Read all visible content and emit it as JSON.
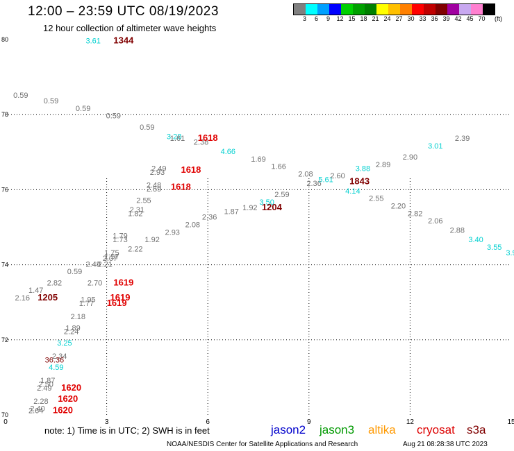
{
  "header": {
    "title": "12:00 – 23:59 UTC 08/19/2023",
    "subtitle": "12 hour collection of altimeter wave heights"
  },
  "scale": {
    "colors": [
      "#808080",
      "#00ffff",
      "#00a0ff",
      "#0000ff",
      "#00d000",
      "#00a000",
      "#008000",
      "#ffff00",
      "#ffc000",
      "#ff8000",
      "#ff0000",
      "#c00000",
      "#800000",
      "#a000a0",
      "#c8a8f0",
      "#ff80d0",
      "#000000"
    ],
    "labels": [
      "3",
      "6",
      "9",
      "12",
      "15",
      "18",
      "21",
      "24",
      "27",
      "30",
      "33",
      "36",
      "39",
      "42",
      "45",
      "70"
    ],
    "unit": "(ft)"
  },
  "footer": {
    "note": "note:  1) Time is in UTC; 2) SWH is in feet",
    "legend": [
      {
        "label": "jason2",
        "color": "#0000cc"
      },
      {
        "label": "jason3",
        "color": "#009900"
      },
      {
        "label": "altika",
        "color": "#ff9900"
      },
      {
        "label": "cryosat",
        "color": "#dd0000"
      },
      {
        "label": "s3a",
        "color": "#800000"
      }
    ],
    "credit": "NOAA/NESDIS Center for Satellite Applications and Research",
    "timestamp": "Aug 21 08:28:38 UTC 2023"
  },
  "chart_data": {
    "type": "scatter",
    "title": "12:00 – 23:59 UTC 08/19/2023",
    "xlim": [
      0,
      15
    ],
    "ylim": [
      70,
      80
    ],
    "x_ticks": [
      "0",
      "3",
      "6",
      "9",
      "12",
      "15"
    ],
    "y_ticks": [
      "70",
      "72",
      "74",
      "76",
      "78",
      "80"
    ],
    "grid": "dotted",
    "value_colors": {
      "gray": "#707070",
      "cyan": "#00d0d0",
      "red": "#e00000",
      "maroon": "#800000"
    },
    "points": [
      {
        "x": 2.6,
        "y": 79.9,
        "text": "3.61",
        "color": "cyan"
      },
      {
        "x": 3.5,
        "y": 79.9,
        "text": "1344",
        "color": "maroon",
        "bold": true
      },
      {
        "x": 0.45,
        "y": 78.45,
        "text": "0.59",
        "color": "gray"
      },
      {
        "x": 1.35,
        "y": 78.3,
        "text": "0.59",
        "color": "gray"
      },
      {
        "x": 2.3,
        "y": 78.1,
        "text": "0.59",
        "color": "gray"
      },
      {
        "x": 3.2,
        "y": 77.9,
        "text": "0.59",
        "color": "gray"
      },
      {
        "x": 4.2,
        "y": 77.6,
        "text": "0.59",
        "color": "gray"
      },
      {
        "x": 5.0,
        "y": 77.35,
        "text": "3.28",
        "color": "cyan"
      },
      {
        "x": 5.1,
        "y": 77.3,
        "text": "1.61",
        "color": "gray"
      },
      {
        "x": 5.8,
        "y": 77.2,
        "text": "2.38",
        "color": "gray"
      },
      {
        "x": 6.0,
        "y": 77.3,
        "text": "1618",
        "color": "red",
        "bold": true
      },
      {
        "x": 6.6,
        "y": 76.95,
        "text": "4.66",
        "color": "cyan"
      },
      {
        "x": 7.5,
        "y": 76.75,
        "text": "1.69",
        "color": "gray"
      },
      {
        "x": 8.1,
        "y": 76.55,
        "text": "1.66",
        "color": "gray"
      },
      {
        "x": 8.9,
        "y": 76.35,
        "text": "2.08",
        "color": "gray"
      },
      {
        "x": 9.15,
        "y": 76.1,
        "text": "2.36",
        "color": "gray"
      },
      {
        "x": 9.5,
        "y": 76.2,
        "text": "5.61",
        "color": "cyan"
      },
      {
        "x": 9.85,
        "y": 76.3,
        "text": "2.60",
        "color": "gray"
      },
      {
        "x": 10.5,
        "y": 76.15,
        "text": "1843",
        "color": "maroon",
        "bold": true
      },
      {
        "x": 10.6,
        "y": 76.5,
        "text": "3.88",
        "color": "cyan"
      },
      {
        "x": 10.3,
        "y": 75.9,
        "text": "4.14",
        "color": "cyan"
      },
      {
        "x": 11.2,
        "y": 76.6,
        "text": "2.89",
        "color": "gray"
      },
      {
        "x": 11.0,
        "y": 75.7,
        "text": "2.55",
        "color": "gray"
      },
      {
        "x": 11.65,
        "y": 75.5,
        "text": "2.20",
        "color": "gray"
      },
      {
        "x": 12.0,
        "y": 76.8,
        "text": "2.90",
        "color": "gray"
      },
      {
        "x": 12.75,
        "y": 77.1,
        "text": "3.01",
        "color": "cyan"
      },
      {
        "x": 13.55,
        "y": 77.3,
        "text": "2.39",
        "color": "gray"
      },
      {
        "x": 12.15,
        "y": 75.3,
        "text": "2.82",
        "color": "gray"
      },
      {
        "x": 12.75,
        "y": 75.1,
        "text": "2.06",
        "color": "gray"
      },
      {
        "x": 13.4,
        "y": 74.85,
        "text": "2.88",
        "color": "gray"
      },
      {
        "x": 13.95,
        "y": 74.6,
        "text": "3.40",
        "color": "cyan"
      },
      {
        "x": 14.5,
        "y": 74.4,
        "text": "3.55",
        "color": "cyan"
      },
      {
        "x": 15.0,
        "y": 74.25,
        "text": "3.9",
        "color": "cyan"
      },
      {
        "x": 4.55,
        "y": 76.5,
        "text": "2.49",
        "color": "gray"
      },
      {
        "x": 4.5,
        "y": 76.4,
        "text": "2.93",
        "color": "gray"
      },
      {
        "x": 5.5,
        "y": 76.45,
        "text": "1618",
        "color": "red",
        "bold": true
      },
      {
        "x": 4.4,
        "y": 76.05,
        "text": "2.48",
        "color": "gray"
      },
      {
        "x": 4.4,
        "y": 75.95,
        "text": "2.59",
        "color": "gray"
      },
      {
        "x": 5.2,
        "y": 76.0,
        "text": "1618",
        "color": "red",
        "bold": true
      },
      {
        "x": 4.1,
        "y": 75.65,
        "text": "2.55",
        "color": "gray"
      },
      {
        "x": 3.9,
        "y": 75.4,
        "text": "2.31",
        "color": "gray"
      },
      {
        "x": 3.85,
        "y": 75.3,
        "text": "1.82",
        "color": "gray"
      },
      {
        "x": 8.2,
        "y": 75.8,
        "text": "2.59",
        "color": "gray"
      },
      {
        "x": 7.75,
        "y": 75.6,
        "text": "3.50",
        "color": "cyan"
      },
      {
        "x": 7.9,
        "y": 75.45,
        "text": "1204",
        "color": "maroon",
        "bold": true
      },
      {
        "x": 7.25,
        "y": 75.45,
        "text": "1.92",
        "color": "gray"
      },
      {
        "x": 6.7,
        "y": 75.35,
        "text": "1.87",
        "color": "gray"
      },
      {
        "x": 6.05,
        "y": 75.2,
        "text": "2.36",
        "color": "gray"
      },
      {
        "x": 5.55,
        "y": 75.0,
        "text": "2.08",
        "color": "gray"
      },
      {
        "x": 4.95,
        "y": 74.8,
        "text": "2.93",
        "color": "gray"
      },
      {
        "x": 4.35,
        "y": 74.6,
        "text": "1.92",
        "color": "gray"
      },
      {
        "x": 3.85,
        "y": 74.35,
        "text": "2.22",
        "color": "gray"
      },
      {
        "x": 3.4,
        "y": 74.7,
        "text": "1.79",
        "color": "gray"
      },
      {
        "x": 3.4,
        "y": 74.6,
        "text": "1.73",
        "color": "gray"
      },
      {
        "x": 3.15,
        "y": 74.25,
        "text": "1.75",
        "color": "gray"
      },
      {
        "x": 3.15,
        "y": 74.15,
        "text": "1.57",
        "color": "gray"
      },
      {
        "x": 3.1,
        "y": 74.1,
        "text": "2.07",
        "color": "gray"
      },
      {
        "x": 2.6,
        "y": 73.95,
        "text": "2.48",
        "color": "gray"
      },
      {
        "x": 2.95,
        "y": 73.95,
        "text": "2.21",
        "color": "gray"
      },
      {
        "x": 2.05,
        "y": 73.75,
        "text": "0.59",
        "color": "gray"
      },
      {
        "x": 1.45,
        "y": 73.45,
        "text": "2.82",
        "color": "gray"
      },
      {
        "x": 0.9,
        "y": 73.25,
        "text": "1.47",
        "color": "gray"
      },
      {
        "x": 0.5,
        "y": 73.05,
        "text": "2.16",
        "color": "gray"
      },
      {
        "x": 1.25,
        "y": 73.05,
        "text": "1205",
        "color": "maroon",
        "bold": true
      },
      {
        "x": 2.65,
        "y": 73.45,
        "text": "2.70",
        "color": "gray"
      },
      {
        "x": 3.5,
        "y": 73.45,
        "text": "1619",
        "color": "red",
        "bold": true
      },
      {
        "x": 2.45,
        "y": 73.0,
        "text": "1.95",
        "color": "gray"
      },
      {
        "x": 2.4,
        "y": 72.9,
        "text": "1.77",
        "color": "gray"
      },
      {
        "x": 3.4,
        "y": 73.05,
        "text": "1619",
        "color": "red",
        "bold": true
      },
      {
        "x": 3.3,
        "y": 72.9,
        "text": "1619",
        "color": "red",
        "bold": true
      },
      {
        "x": 2.15,
        "y": 72.55,
        "text": "2.18",
        "color": "gray"
      },
      {
        "x": 2.0,
        "y": 72.25,
        "text": "1.89",
        "color": "gray"
      },
      {
        "x": 1.95,
        "y": 72.15,
        "text": "2.24",
        "color": "gray"
      },
      {
        "x": 1.75,
        "y": 71.85,
        "text": "3.25",
        "color": "cyan"
      },
      {
        "x": 1.6,
        "y": 71.5,
        "text": "2.34",
        "color": "gray"
      },
      {
        "x": 1.45,
        "y": 71.4,
        "text": "36.36",
        "color": "maroon"
      },
      {
        "x": 1.5,
        "y": 71.2,
        "text": "4.59",
        "color": "cyan"
      },
      {
        "x": 1.25,
        "y": 70.85,
        "text": "1.87",
        "color": "gray"
      },
      {
        "x": 1.2,
        "y": 70.75,
        "text": "2.50",
        "color": "gray"
      },
      {
        "x": 1.15,
        "y": 70.65,
        "text": "2.49",
        "color": "gray"
      },
      {
        "x": 1.95,
        "y": 70.65,
        "text": "1620",
        "color": "red",
        "bold": true
      },
      {
        "x": 1.05,
        "y": 70.3,
        "text": "2.28",
        "color": "gray"
      },
      {
        "x": 1.85,
        "y": 70.35,
        "text": "1620",
        "color": "red",
        "bold": true
      },
      {
        "x": 0.95,
        "y": 70.1,
        "text": "2.40",
        "color": "gray"
      },
      {
        "x": 0.9,
        "y": 70.05,
        "text": "2.64",
        "color": "gray"
      },
      {
        "x": 1.7,
        "y": 70.05,
        "text": "1620",
        "color": "red",
        "bold": true
      }
    ]
  }
}
